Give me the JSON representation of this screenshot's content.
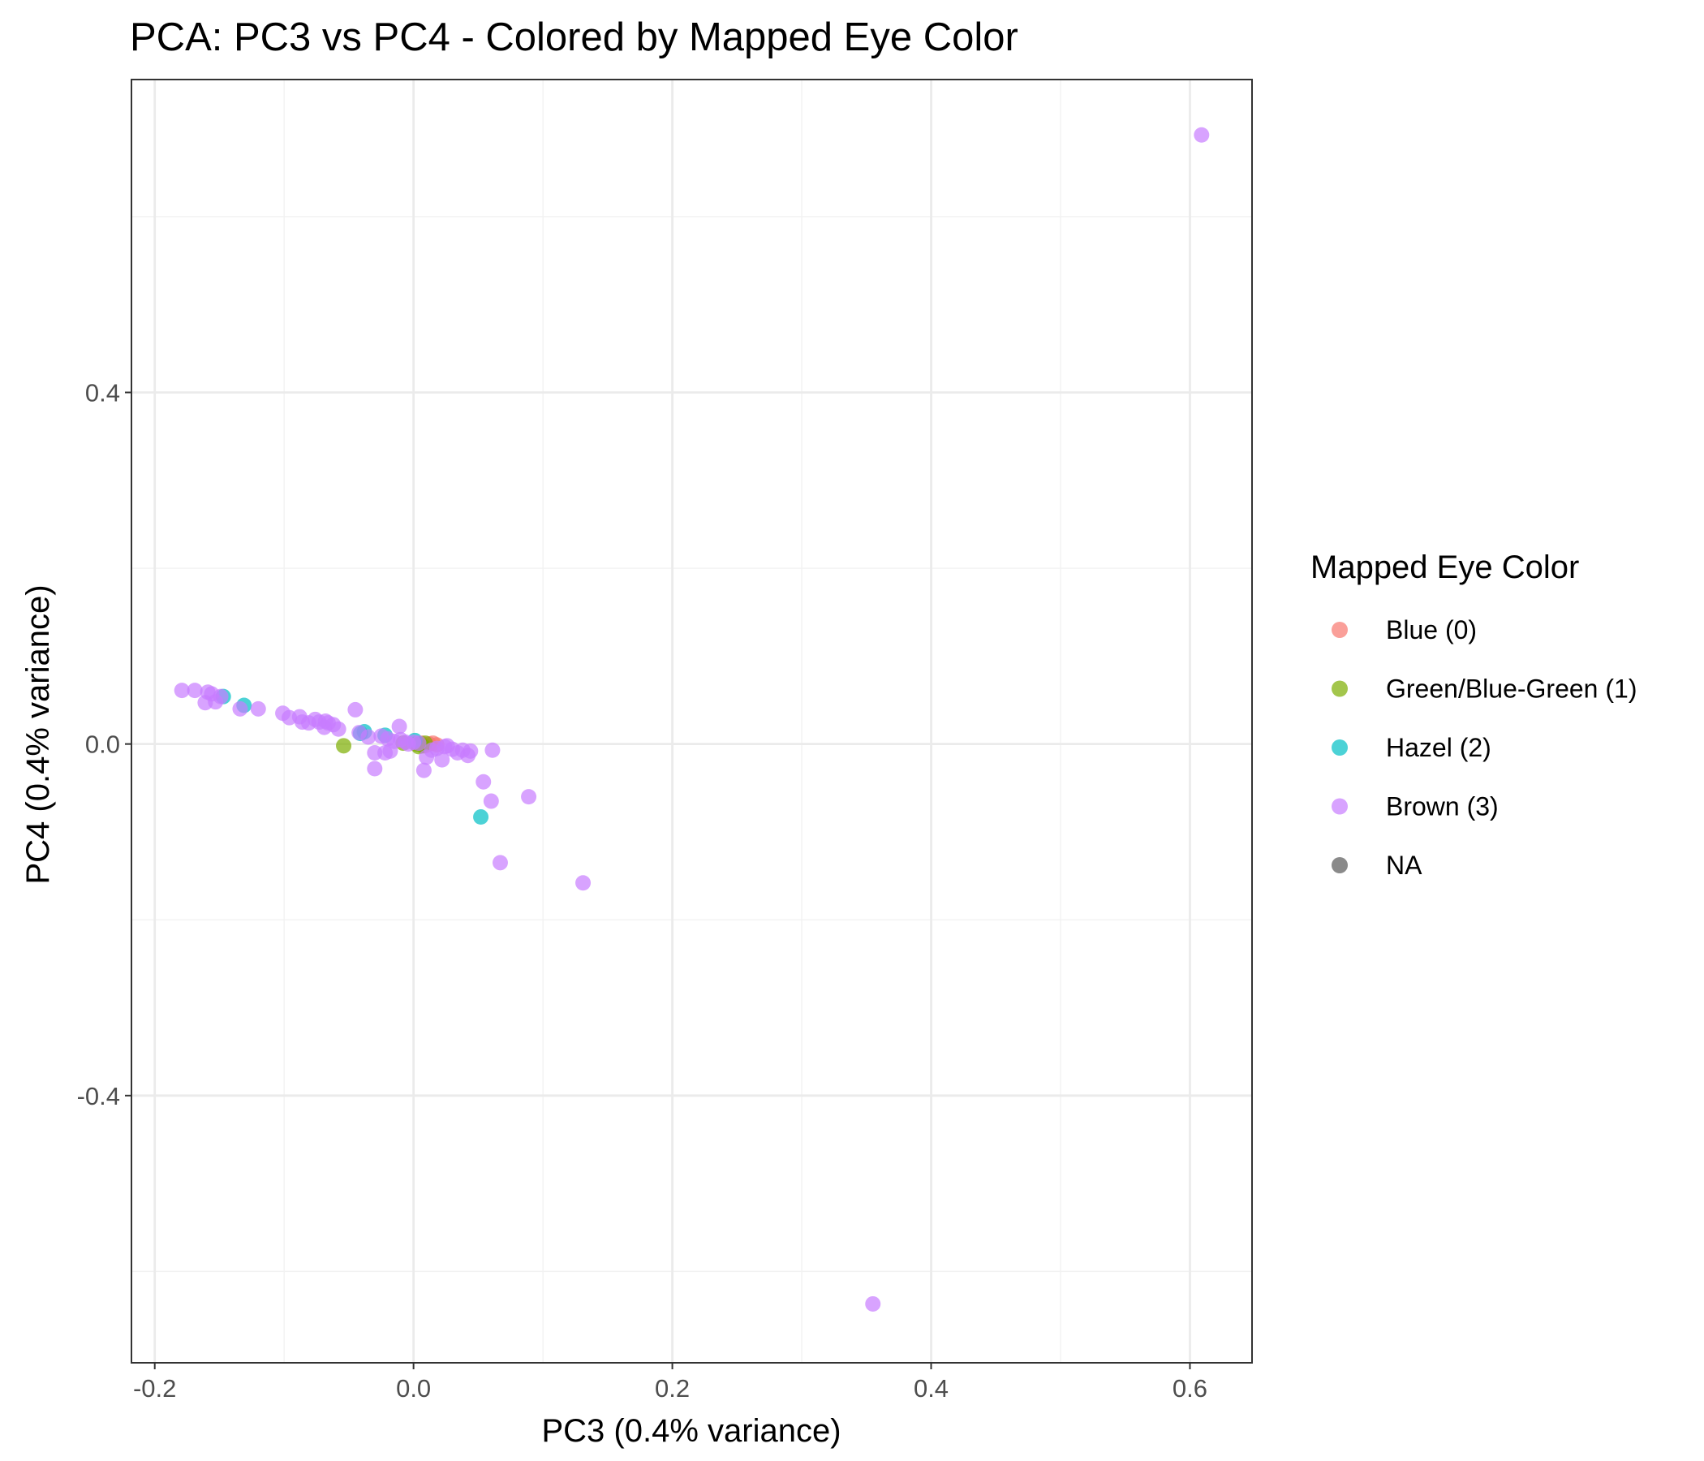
{
  "chart_data": {
    "type": "scatter",
    "title": "PCA: PC3 vs PC4 - Colored by Mapped Eye Color",
    "xlabel": "PC3 (0.4% variance)",
    "ylabel": "PC4 (0.4% variance)",
    "xlim": [
      -0.218,
      0.648
    ],
    "ylim": [
      -0.704,
      0.756
    ],
    "x_ticks": [
      -0.2,
      0.0,
      0.2,
      0.4,
      0.6
    ],
    "x_tick_labels": [
      "-0.2",
      "0.0",
      "0.2",
      "0.4",
      "0.6"
    ],
    "y_ticks": [
      -0.4,
      0.0,
      0.4
    ],
    "y_tick_labels": [
      "-0.4",
      "0.0",
      "0.4"
    ],
    "x_minor": [
      -0.1,
      0.1,
      0.3,
      0.5
    ],
    "y_minor": [
      -0.6,
      -0.2,
      0.2,
      0.6
    ],
    "grid": true,
    "legend": {
      "title": "Mapped Eye Color",
      "placement": "right",
      "entries": [
        "Blue (0)",
        "Green/Blue-Green (1)",
        "Hazel (2)",
        "Brown (3)",
        "NA"
      ]
    },
    "series": [
      {
        "name": "Blue (0)",
        "color": "#F8766D",
        "points": [
          [
            0.012,
            0.0
          ],
          [
            0.009,
            -0.002
          ],
          [
            0.015,
            0.001
          ],
          [
            0.006,
            0.001
          ],
          [
            0.018,
            -0.001
          ]
        ]
      },
      {
        "name": "Green/Blue-Green (1)",
        "color": "#7CAE00",
        "points": [
          [
            -0.054,
            -0.002
          ],
          [
            0.005,
            0.0
          ],
          [
            0.007,
            -0.002
          ],
          [
            -0.008,
            0.001
          ],
          [
            0.002,
            0.0
          ],
          [
            0.009,
            0.001
          ],
          [
            0.004,
            -0.003
          ]
        ]
      },
      {
        "name": "Hazel (2)",
        "color": "#00BFC4",
        "points": [
          [
            -0.147,
            0.054
          ],
          [
            -0.131,
            0.044
          ],
          [
            -0.041,
            0.012
          ],
          [
            -0.038,
            0.014
          ],
          [
            -0.022,
            0.01
          ],
          [
            0.001,
            0.004
          ],
          [
            0.052,
            -0.083
          ]
        ]
      },
      {
        "name": "Brown (3)",
        "color": "#C77CFF",
        "points": [
          [
            -0.179,
            0.061
          ],
          [
            -0.169,
            0.061
          ],
          [
            -0.159,
            0.059
          ],
          [
            -0.156,
            0.057
          ],
          [
            -0.161,
            0.047
          ],
          [
            -0.153,
            0.048
          ],
          [
            -0.149,
            0.054
          ],
          [
            -0.134,
            0.04
          ],
          [
            -0.12,
            0.04
          ],
          [
            -0.101,
            0.035
          ],
          [
            -0.096,
            0.03
          ],
          [
            -0.088,
            0.031
          ],
          [
            -0.086,
            0.025
          ],
          [
            -0.081,
            0.024
          ],
          [
            -0.076,
            0.028
          ],
          [
            -0.073,
            0.025
          ],
          [
            -0.068,
            0.026
          ],
          [
            -0.069,
            0.019
          ],
          [
            -0.066,
            0.024
          ],
          [
            -0.062,
            0.022
          ],
          [
            -0.058,
            0.017
          ],
          [
            -0.045,
            0.039
          ],
          [
            -0.042,
            0.013
          ],
          [
            -0.035,
            0.008
          ],
          [
            -0.03,
            -0.01
          ],
          [
            -0.03,
            -0.028
          ],
          [
            -0.025,
            0.009
          ],
          [
            -0.022,
            -0.01
          ],
          [
            -0.02,
            0.006
          ],
          [
            -0.018,
            -0.008
          ],
          [
            -0.015,
            0.003
          ],
          [
            -0.01,
            0.005
          ],
          [
            -0.011,
            0.02
          ],
          [
            -0.006,
            0.002
          ],
          [
            -0.004,
            0.0
          ],
          [
            0.0,
            0.002
          ],
          [
            0.004,
            0.001
          ],
          [
            0.008,
            -0.03
          ],
          [
            0.01,
            -0.015
          ],
          [
            0.014,
            -0.007
          ],
          [
            0.018,
            -0.005
          ],
          [
            0.022,
            -0.018
          ],
          [
            0.024,
            -0.003
          ],
          [
            0.026,
            -0.002
          ],
          [
            0.03,
            -0.006
          ],
          [
            0.034,
            -0.01
          ],
          [
            0.038,
            -0.007
          ],
          [
            0.042,
            -0.013
          ],
          [
            0.044,
            -0.008
          ],
          [
            0.054,
            -0.043
          ],
          [
            0.06,
            -0.065
          ],
          [
            0.061,
            -0.007
          ],
          [
            0.067,
            -0.135
          ],
          [
            0.089,
            -0.06
          ],
          [
            0.131,
            -0.158
          ],
          [
            0.355,
            -0.637
          ],
          [
            0.609,
            0.693
          ]
        ]
      }
    ]
  }
}
